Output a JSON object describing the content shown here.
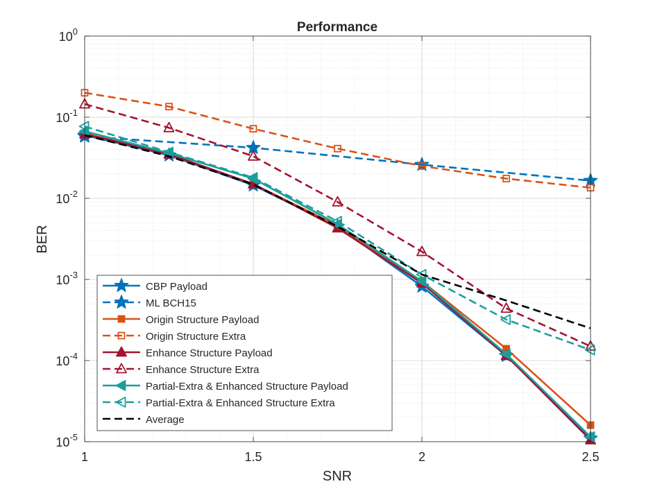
{
  "chart_data": {
    "type": "line",
    "title": "Performance",
    "xlabel": "SNR",
    "ylabel": "BER",
    "xlim": [
      1,
      2.5
    ],
    "ylim": [
      1e-05,
      1
    ],
    "yscale": "log",
    "grid": true,
    "minor_grid": true,
    "legend_position": "bottom-left",
    "x_ticks": [
      {
        "value": 1,
        "label": "1"
      },
      {
        "value": 1.5,
        "label": "1.5"
      },
      {
        "value": 2,
        "label": "2"
      },
      {
        "value": 2.5,
        "label": "2.5"
      }
    ],
    "y_ticks": [
      {
        "exp": 0,
        "base": "10",
        "sup": "0"
      },
      {
        "exp": -1,
        "base": "10",
        "sup": "-1"
      },
      {
        "exp": -2,
        "base": "10",
        "sup": "-2"
      },
      {
        "exp": -3,
        "base": "10",
        "sup": "-3"
      },
      {
        "exp": -4,
        "base": "10",
        "sup": "-4"
      },
      {
        "exp": -5,
        "base": "10",
        "sup": "-5"
      }
    ],
    "series": [
      {
        "name": "CBP Payload",
        "color": "#0072BD",
        "dash": "solid",
        "marker": "star",
        "filled": true,
        "x": [
          1,
          1.25,
          1.5,
          1.75,
          2,
          2.25,
          2.5
        ],
        "y": [
          0.06,
          0.034,
          0.0145,
          0.0045,
          0.00082,
          0.000115,
          1.1e-05
        ]
      },
      {
        "name": "ML BCH15",
        "color": "#0072BD",
        "dash": "dashed",
        "marker": "star",
        "filled": true,
        "x": [
          1,
          1.5,
          2,
          2.5
        ],
        "y": [
          0.058,
          0.042,
          0.026,
          0.0165
        ]
      },
      {
        "name": "Origin Structure Payload",
        "color": "#D95319",
        "dash": "solid",
        "marker": "square",
        "filled": true,
        "x": [
          1,
          1.25,
          1.5,
          1.75,
          2,
          2.25,
          2.5
        ],
        "y": [
          0.063,
          0.035,
          0.015,
          0.0046,
          0.00095,
          0.00014,
          1.6e-05
        ]
      },
      {
        "name": "Origin Structure Extra",
        "color": "#D95319",
        "dash": "dashed",
        "marker": "square",
        "filled": false,
        "x": [
          1,
          1.25,
          1.5,
          1.75,
          2,
          2.25,
          2.5
        ],
        "y": [
          0.2,
          0.135,
          0.072,
          0.041,
          0.025,
          0.0175,
          0.0135
        ]
      },
      {
        "name": "Enhance Structure Payload",
        "color": "#A2142F",
        "dash": "solid",
        "marker": "triangle-up",
        "filled": true,
        "x": [
          1,
          1.25,
          1.5,
          1.75,
          2,
          2.25,
          2.5
        ],
        "y": [
          0.062,
          0.035,
          0.015,
          0.0043,
          0.0009,
          0.000115,
          1.05e-05
        ]
      },
      {
        "name": "Enhance Structure Extra",
        "color": "#A2142F",
        "dash": "dashed",
        "marker": "triangle-up",
        "filled": false,
        "x": [
          1,
          1.25,
          1.5,
          1.75,
          2,
          2.25,
          2.5
        ],
        "y": [
          0.145,
          0.074,
          0.033,
          0.009,
          0.0022,
          0.00044,
          0.00015
        ]
      },
      {
        "name": "Partial-Extra & Enhanced Structure Payload",
        "color": "#1B9E9B",
        "dash": "solid",
        "marker": "triangle-left",
        "filled": true,
        "x": [
          1,
          1.25,
          1.5,
          1.75,
          2,
          2.25,
          2.5
        ],
        "y": [
          0.067,
          0.036,
          0.0175,
          0.0048,
          0.00095,
          0.00012,
          1.15e-05
        ]
      },
      {
        "name": "Partial-Extra & Enhanced Structure Extra",
        "color": "#1B9E9B",
        "dash": "dashed",
        "marker": "triangle-left",
        "filled": false,
        "x": [
          1,
          1.25,
          1.5,
          1.75,
          2,
          2.25,
          2.5
        ],
        "y": [
          0.077,
          0.037,
          0.018,
          0.0052,
          0.00115,
          0.00032,
          0.000135
        ]
      },
      {
        "name": "Average",
        "color": "#000000",
        "dash": "dashed",
        "marker": "none",
        "filled": false,
        "x": [
          1,
          1.25,
          1.5,
          1.75,
          2,
          2.25,
          2.5
        ],
        "y": [
          0.06,
          0.033,
          0.0148,
          0.0045,
          0.00115,
          0.00055,
          0.00025
        ]
      }
    ]
  }
}
